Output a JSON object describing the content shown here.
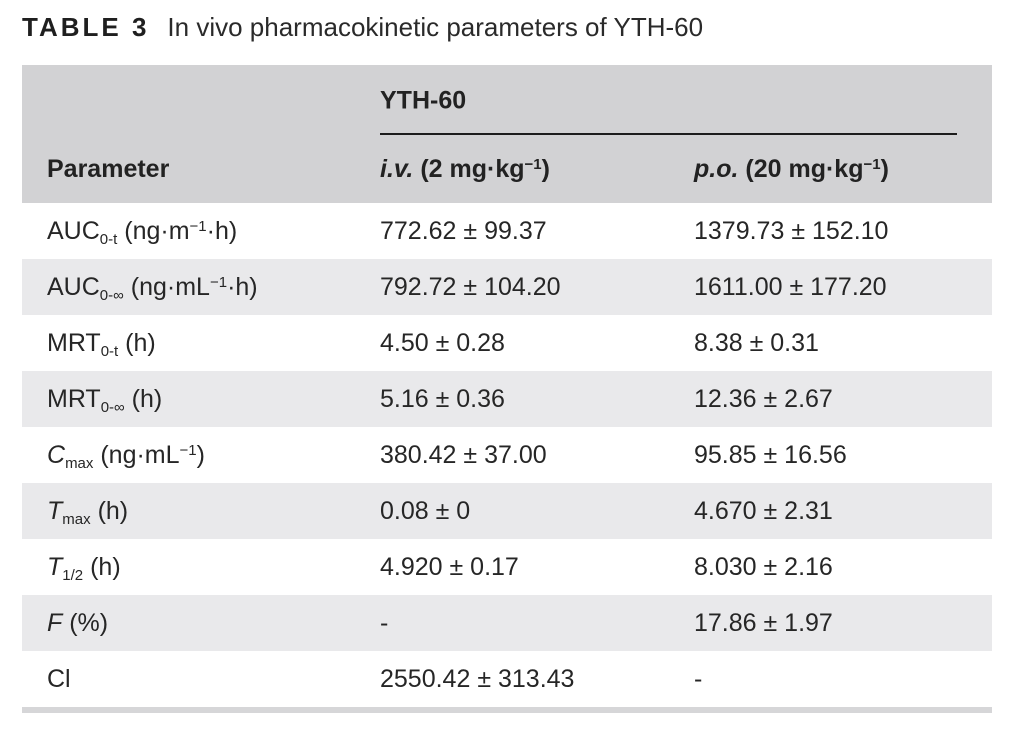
{
  "caption": {
    "label": "TABLE 3",
    "text": "In vivo pharmacokinetic parameters of YTH-60"
  },
  "table": {
    "group_header": "YTH-60",
    "columns": [
      "Parameter",
      "*i.v.* (2 mg·kg^−1^)",
      "*p.o.* (20 mg·kg^−1^)"
    ],
    "rows": [
      {
        "param": "AUC~0-t~ (ng·m^−1^·h)",
        "iv": "772.62 ± 99.37",
        "po": "1379.73 ± 152.10"
      },
      {
        "param": "AUC~0-∞~ (ng·mL^−1^·h)",
        "iv": "792.72 ± 104.20",
        "po": "1611.00 ± 177.20"
      },
      {
        "param": "MRT~0-t~ (h)",
        "iv": "4.50 ± 0.28",
        "po": "8.38 ± 0.31"
      },
      {
        "param": "MRT~0-∞~ (h)",
        "iv": "5.16 ± 0.36",
        "po": "12.36 ± 2.67"
      },
      {
        "param": "*C*~max~ (ng·mL^−1^)",
        "iv": "380.42 ± 37.00",
        "po": "95.85 ± 16.56"
      },
      {
        "param": "*T*~max~ (h)",
        "iv": "0.08 ± 0",
        "po": "4.670 ± 2.31"
      },
      {
        "param": "*T*~1/2~ (h)",
        "iv": "4.920 ± 0.17",
        "po": "8.030 ± 2.16"
      },
      {
        "param": "*F* (%)",
        "iv": "-",
        "po": "17.86 ± 1.97"
      },
      {
        "param": "Cl",
        "iv": "2550.42 ± 313.43",
        "po": "-"
      }
    ],
    "colors": {
      "header_bg": "#d2d2d4",
      "row_alt_bg": "#e9e9eb",
      "text": "#262626",
      "group_rule": "#1c1c1c",
      "bottom_bar": "#d6d6d8"
    }
  }
}
